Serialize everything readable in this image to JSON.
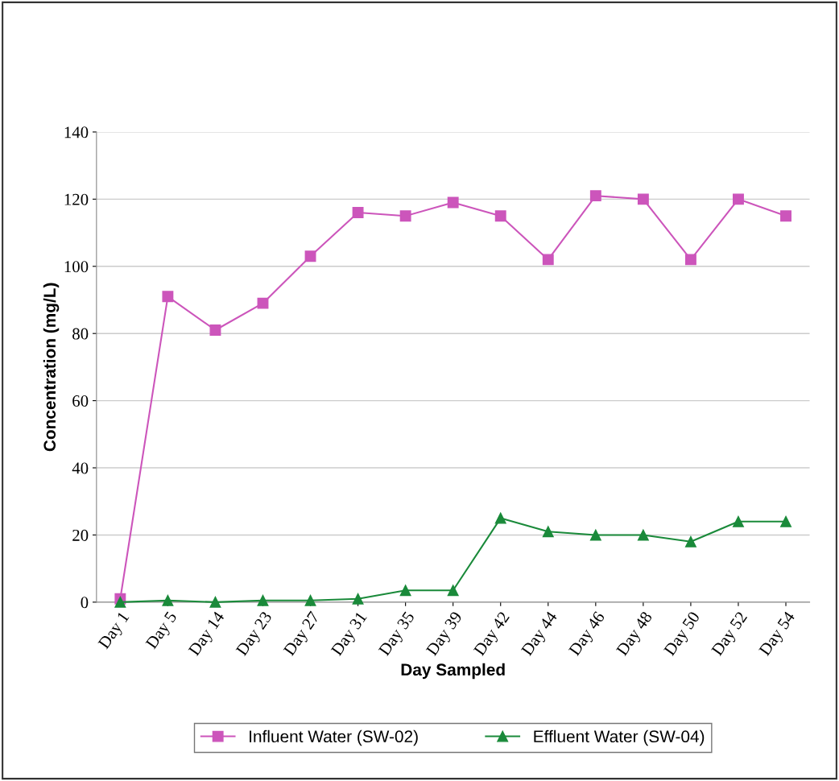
{
  "chart_data": {
    "type": "line",
    "xlabel": "Day Sampled",
    "ylabel": "Concentration (mg/L)",
    "categories": [
      "Day 1",
      "Day 5",
      "Day 14",
      "Day 23",
      "Day 27",
      "Day 31",
      "Day 35",
      "Day 39",
      "Day 42",
      "Day 44",
      "Day 46",
      "Day 48",
      "Day 50",
      "Day 52",
      "Day 54"
    ],
    "series": [
      {
        "name": "Influent Water (SW-02)",
        "color": "#cc55bb",
        "marker": "square",
        "values": [
          1,
          91,
          81,
          89,
          103,
          116,
          115,
          119,
          115,
          102,
          121,
          120,
          102,
          120,
          115
        ]
      },
      {
        "name": "Effluent Water (SW-04)",
        "color": "#1a8a3a",
        "marker": "triangle",
        "values": [
          0,
          0.5,
          0,
          0.5,
          0.5,
          1,
          3.5,
          3.5,
          25,
          21,
          20,
          20,
          18,
          24,
          24
        ]
      }
    ],
    "ylim": [
      0,
      140
    ],
    "yticks": [
      0,
      20,
      40,
      60,
      80,
      100,
      120,
      140
    ],
    "grid": "y",
    "legend": "bottom",
    "line_style": "solid"
  }
}
